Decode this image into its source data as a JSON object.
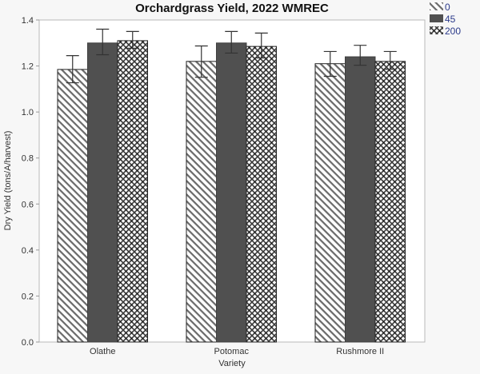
{
  "chart_data": {
    "type": "bar",
    "title": "Orchardgrass Yield, 2022 WMREC",
    "xlabel": "Variety",
    "ylabel": "Dry Yield (tons/A/harvest)",
    "ylim": [
      0,
      1.4
    ],
    "yticks": [
      "0.0",
      "0.2",
      "0.4",
      "0.6",
      "0.8",
      "1.0",
      "1.2",
      "1.4"
    ],
    "categories": [
      "Olathe",
      "Potomac",
      "Rushmore II"
    ],
    "legend_position": "top-right",
    "grid": false,
    "series": [
      {
        "name": "0",
        "pattern": "diagonal-hatch",
        "values": [
          1.185,
          1.22,
          1.21
        ],
        "err_low": [
          1.127,
          1.151,
          1.155
        ],
        "err_high": [
          1.245,
          1.287,
          1.263
        ]
      },
      {
        "name": "45",
        "pattern": "solid",
        "color": "#505050",
        "values": [
          1.3,
          1.3,
          1.24
        ],
        "err_low": [
          1.249,
          1.256,
          1.203
        ],
        "err_high": [
          1.36,
          1.35,
          1.29
        ]
      },
      {
        "name": "200",
        "pattern": "crosshatch",
        "values": [
          1.31,
          1.285,
          1.22
        ],
        "err_low": [
          1.277,
          1.235,
          1.186
        ],
        "err_high": [
          1.35,
          1.343,
          1.263
        ]
      }
    ]
  },
  "legend": {
    "items": [
      {
        "label": "0",
        "icon": "diagonal-hatch-swatch"
      },
      {
        "label": "45",
        "icon": "solid-dark-swatch"
      },
      {
        "label": "200",
        "icon": "crosshatch-swatch"
      }
    ]
  }
}
